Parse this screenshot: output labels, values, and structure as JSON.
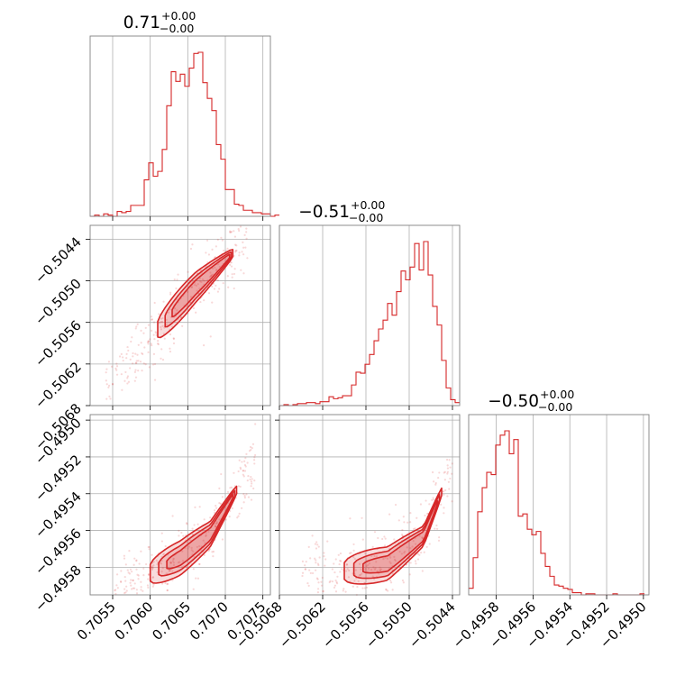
{
  "chart_data": [
    {
      "type": "histogram",
      "panel": "diag-0",
      "title_value": "0.71",
      "title_plus": "+0.00",
      "title_minus": "−0.00",
      "xlim": [
        0.7052,
        0.7076
      ],
      "xticks": [
        0.7055,
        0.706,
        0.7065,
        0.707,
        0.7075
      ],
      "xtick_labels": [
        "0.7055",
        "0.7060",
        "0.7065",
        "0.7070",
        "0.7075"
      ],
      "bins_start": 0.7052,
      "bin_width": 6e-05,
      "counts": [
        0,
        1,
        0,
        2,
        1,
        0,
        4,
        3,
        4,
        9,
        9,
        9,
        30,
        44,
        33,
        37,
        55,
        91,
        119,
        111,
        117,
        107,
        122,
        134,
        135,
        110,
        97,
        87,
        59,
        47,
        22,
        22,
        10,
        9,
        5,
        5,
        3,
        3,
        2,
        2,
        0,
        1
      ]
    },
    {
      "type": "histogram",
      "panel": "diag-1",
      "title_value": "−0.51",
      "title_plus": "+0.00",
      "title_minus": "−0.00",
      "xlim": [
        -0.5068,
        -0.5043
      ],
      "xticks": [
        -0.5068,
        -0.5062,
        -0.5056,
        -0.505,
        -0.5044
      ],
      "xtick_labels": [
        "−0.5068",
        "−0.5062",
        "−0.5056",
        "−0.5050",
        "−0.5044"
      ],
      "bins_start": -0.5068,
      "bin_width": 6.25e-05,
      "counts": [
        0,
        1,
        0,
        1,
        2,
        2,
        3,
        3,
        2,
        4,
        4,
        9,
        7,
        8,
        10,
        10,
        21,
        34,
        33,
        42,
        52,
        66,
        78,
        87,
        104,
        92,
        116,
        137,
        128,
        141,
        165,
        138,
        167,
        133,
        101,
        82,
        46,
        18,
        6,
        3
      ]
    },
    {
      "type": "histogram",
      "panel": "diag-2",
      "title_value": "−0.50",
      "title_plus": "+0.00",
      "title_minus": "−0.00",
      "xlim": [
        -0.49595,
        -0.49497
      ],
      "xticks": [
        -0.4958,
        -0.4956,
        -0.4954,
        -0.4952,
        -0.495
      ],
      "xtick_labels": [
        "−0.4958",
        "−0.4956",
        "−0.4954",
        "−0.4952",
        "−0.4950"
      ],
      "bins_start": -0.49595,
      "bin_width": 2.45e-05,
      "counts": [
        6,
        34,
        76,
        98,
        112,
        110,
        137,
        146,
        150,
        129,
        142,
        72,
        74,
        60,
        55,
        58,
        38,
        26,
        17,
        9,
        8,
        6,
        5,
        2,
        2,
        0,
        1,
        1,
        0,
        0,
        0,
        0,
        1,
        0,
        0,
        0,
        0,
        0,
        1
      ]
    },
    {
      "type": "scatter-contour",
      "panel": "pair-1-0",
      "xlim": [
        0.7052,
        0.7076
      ],
      "ylim": [
        -0.5068,
        -0.5042
      ],
      "yticks": [
        -0.5044,
        -0.505,
        -0.5056,
        -0.5062,
        -0.5068
      ],
      "ytick_labels": [
        "−0.5044",
        "−0.5050",
        "−0.5056",
        "−0.5062",
        "−0.5068"
      ],
      "spine_x": [
        0.7061,
        0.7066,
        0.7071
      ],
      "spine_y": [
        -0.5057,
        -0.5051,
        -0.5046
      ],
      "width_y": 0.00025,
      "scatter_x_range": [
        0.7054,
        0.7073
      ]
    },
    {
      "type": "scatter-contour",
      "panel": "pair-2-0",
      "xlim": [
        0.7052,
        0.7076
      ],
      "ylim": [
        -0.49595,
        -0.49497
      ],
      "yticks": [
        -0.495,
        -0.4952,
        -0.4954,
        -0.4956,
        -0.4958
      ],
      "ytick_labels": [
        "−0.4950",
        "−0.4952",
        "−0.4954",
        "−0.4956",
        "−0.4958"
      ],
      "spine_x": [
        0.706,
        0.7064,
        0.7068,
        0.70715
      ],
      "spine_y": [
        -0.49583,
        -0.49575,
        -0.49562,
        -0.49538
      ],
      "width_y": 0.0001,
      "scatter_x_range": [
        0.7055,
        0.7074
      ]
    },
    {
      "type": "scatter-contour",
      "panel": "pair-2-1",
      "xlim": [
        -0.5068,
        -0.5043
      ],
      "ylim": [
        -0.49595,
        -0.49497
      ],
      "spine_x": [
        -0.5059,
        -0.5053,
        -0.5048,
        -0.50455
      ],
      "spine_y": [
        -0.49582,
        -0.49578,
        -0.49563,
        -0.49539
      ],
      "width_y": 0.0001,
      "scatter_x_range": [
        -0.5065,
        -0.5044
      ]
    }
  ],
  "colors": {
    "line": "#d62728",
    "fill": "#d62728",
    "grid": "#b0b0b0",
    "frame": "#808080",
    "tick": "#000000"
  }
}
